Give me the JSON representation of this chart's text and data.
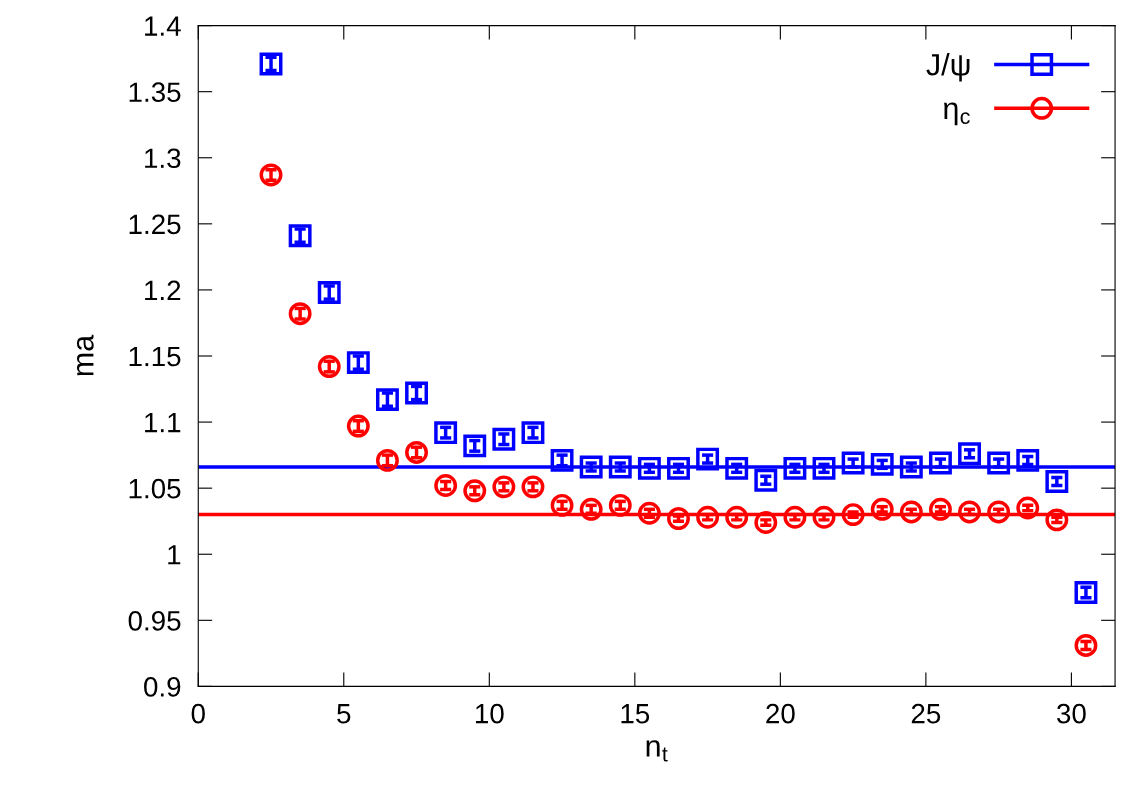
{
  "chart_data": {
    "type": "scatter",
    "xlabel": "n$_{t}$",
    "ylabel": "ma",
    "xlim": [
      0,
      31.5
    ],
    "xticks": [
      0,
      5,
      10,
      15,
      20,
      25,
      30
    ],
    "ylim": [
      0.9,
      1.4
    ],
    "yticks": [
      0.9,
      0.95,
      1,
      1.05,
      1.1,
      1.15,
      1.2,
      1.25,
      1.3,
      1.35,
      1.4
    ],
    "grid": false,
    "legend": "top right",
    "line_style": "none",
    "x": [
      2.5,
      3.5,
      4.5,
      5.5,
      6.5,
      7.5,
      8.5,
      9.5,
      10.5,
      11.5,
      12.5,
      13.5,
      14.5,
      15.5,
      16.5,
      17.5,
      18.5,
      19.5,
      20.5,
      21.5,
      22.5,
      23.5,
      24.5,
      25.5,
      26.5,
      27.5,
      28.5,
      29.5,
      30.5
    ],
    "series": [
      {
        "name": "J/ψ",
        "color": "#0000ff",
        "marker": "square",
        "values": [
          1.371,
          1.241,
          1.198,
          1.145,
          1.117,
          1.122,
          1.092,
          1.082,
          1.087,
          1.092,
          1.071,
          1.066,
          1.066,
          1.065,
          1.065,
          1.072,
          1.065,
          1.056,
          1.065,
          1.065,
          1.069,
          1.068,
          1.066,
          1.069,
          1.076,
          1.069,
          1.071,
          1.055,
          0.971
        ],
        "errors": [
          0.005,
          0.005,
          0.005,
          0.005,
          0.005,
          0.005,
          0.004,
          0.004,
          0.004,
          0.004,
          0.004,
          0.003,
          0.003,
          0.003,
          0.003,
          0.003,
          0.003,
          0.003,
          0.003,
          0.003,
          0.003,
          0.003,
          0.003,
          0.003,
          0.003,
          0.003,
          0.003,
          0.003,
          0.004
        ]
      },
      {
        "name": "η$_{c}$",
        "color": "#ff0000",
        "marker": "circle",
        "values": [
          1.287,
          1.182,
          1.142,
          1.097,
          1.071,
          1.077,
          1.052,
          1.048,
          1.051,
          1.051,
          1.037,
          1.034,
          1.037,
          1.031,
          1.027,
          1.028,
          1.028,
          1.024,
          1.028,
          1.028,
          1.03,
          1.034,
          1.032,
          1.034,
          1.032,
          1.032,
          1.035,
          1.026,
          0.931
        ],
        "errors": [
          0.004,
          0.004,
          0.004,
          0.004,
          0.004,
          0.004,
          0.003,
          0.003,
          0.003,
          0.003,
          0.003,
          0.003,
          0.003,
          0.003,
          0.002,
          0.002,
          0.002,
          0.002,
          0.002,
          0.002,
          0.002,
          0.002,
          0.002,
          0.002,
          0.002,
          0.002,
          0.002,
          0.002,
          0.003
        ]
      }
    ],
    "ref_lines": [
      {
        "axis": "y",
        "value": 1.066,
        "color": "#0000ff",
        "line_style": "solid"
      },
      {
        "axis": "y",
        "value": 1.03,
        "color": "#ff0000",
        "line_style": "solid"
      }
    ]
  }
}
